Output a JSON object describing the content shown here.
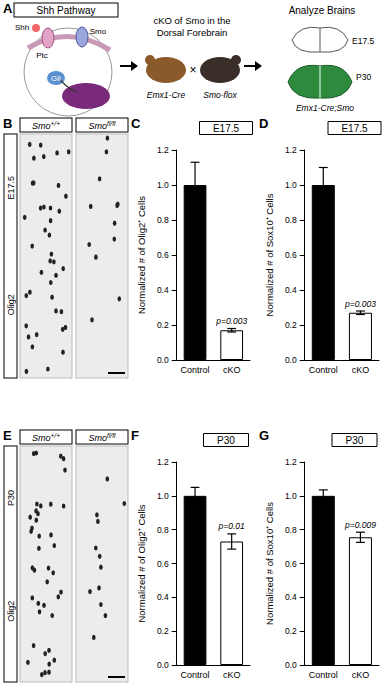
{
  "panels": {
    "A": {
      "letter": "A",
      "pathway_title": "Shh Pathway",
      "pathway_labels": [
        "Shh",
        "Ptc",
        "Smo",
        "Gli"
      ],
      "cross_title_lines": [
        "cKO of Smo in the",
        "Dorsal Forebrain"
      ],
      "cross_parents": [
        "Emx1-Cre",
        "Smo-flox"
      ],
      "cross_symbol": "×",
      "analysis_title": "Analyze Brains",
      "stages": [
        "E17.5",
        "P30"
      ],
      "genotype": "Emx1-Cre;Smo"
    },
    "B": {
      "letter": "B",
      "stage": "E17.5",
      "stain": "Olig2",
      "columns": [
        {
          "gene": "Smo",
          "allele": "+/+"
        },
        {
          "gene": "Smo",
          "allele": "fl/fl"
        }
      ]
    },
    "E": {
      "letter": "E",
      "stage": "P30",
      "stain": "Olig2",
      "columns": [
        {
          "gene": "Smo",
          "allele": "+/+"
        },
        {
          "gene": "Smo",
          "allele": "fl/fl"
        }
      ]
    },
    "chart_letters": [
      "C",
      "D",
      "F",
      "G"
    ]
  },
  "chart_data": [
    {
      "type": "bar",
      "title": "E17.5",
      "ylabel": "Normalized # of Olig2⁺ Cells",
      "categories": [
        "Control",
        "cKO"
      ],
      "values": [
        1.0,
        0.17
      ],
      "errors": [
        0.13,
        0.01
      ],
      "colors": [
        "#000000",
        "#ffffff"
      ],
      "ylim": [
        0,
        1.2
      ],
      "yticks": [
        {
          "value": 0,
          "label": "0.0"
        },
        0.2,
        0.4,
        0.6,
        0.8,
        {
          "value": 1,
          "label": "1.0"
        },
        1.2
      ],
      "annotations": [
        {
          "category": "cKO",
          "text": "p=0.003"
        }
      ]
    },
    {
      "type": "bar",
      "title": "E17.5",
      "ylabel": "Normalized # of Sox10⁺ Cells",
      "categories": [
        "Control",
        "cKO"
      ],
      "values": [
        1.0,
        0.27
      ],
      "errors": [
        0.1,
        0.01
      ],
      "colors": [
        "#000000",
        "#ffffff"
      ],
      "ylim": [
        0,
        1.2
      ],
      "yticks": [
        {
          "value": 0,
          "label": "0.0"
        },
        0.2,
        0.4,
        0.6,
        0.8,
        {
          "value": 1,
          "label": "1.0"
        },
        1.2
      ],
      "annotations": [
        {
          "category": "cKO",
          "text": "p=0.003"
        }
      ]
    },
    {
      "type": "bar",
      "title": "P30",
      "ylabel": "Normalized # of Olig2⁺ Cells",
      "categories": [
        "Control",
        "cKO"
      ],
      "values": [
        1.0,
        0.73
      ],
      "errors": [
        0.05,
        0.045
      ],
      "colors": [
        "#000000",
        "#ffffff"
      ],
      "ylim": [
        0,
        1.2
      ],
      "yticks": [
        {
          "value": 0,
          "label": "0.0"
        },
        0.2,
        0.4,
        0.6,
        0.8,
        {
          "value": 1,
          "label": "1.0"
        },
        1.2
      ],
      "annotations": [
        {
          "category": "cKO",
          "text": "p=0.01"
        }
      ]
    },
    {
      "type": "bar",
      "title": "P30",
      "ylabel": "Normalized # of Sox10⁺ Cells",
      "categories": [
        "Control",
        "cKO"
      ],
      "values": [
        1.0,
        0.755
      ],
      "errors": [
        0.035,
        0.03
      ],
      "colors": [
        "#000000",
        "#ffffff"
      ],
      "ylim": [
        0,
        1.2
      ],
      "yticks": [
        {
          "value": 0,
          "label": "0.0"
        },
        0.2,
        0.4,
        0.6,
        0.8,
        {
          "value": 1,
          "label": "1.0"
        },
        1.2
      ],
      "annotations": [
        {
          "category": "cKO",
          "text": "p=0.009"
        }
      ]
    }
  ]
}
